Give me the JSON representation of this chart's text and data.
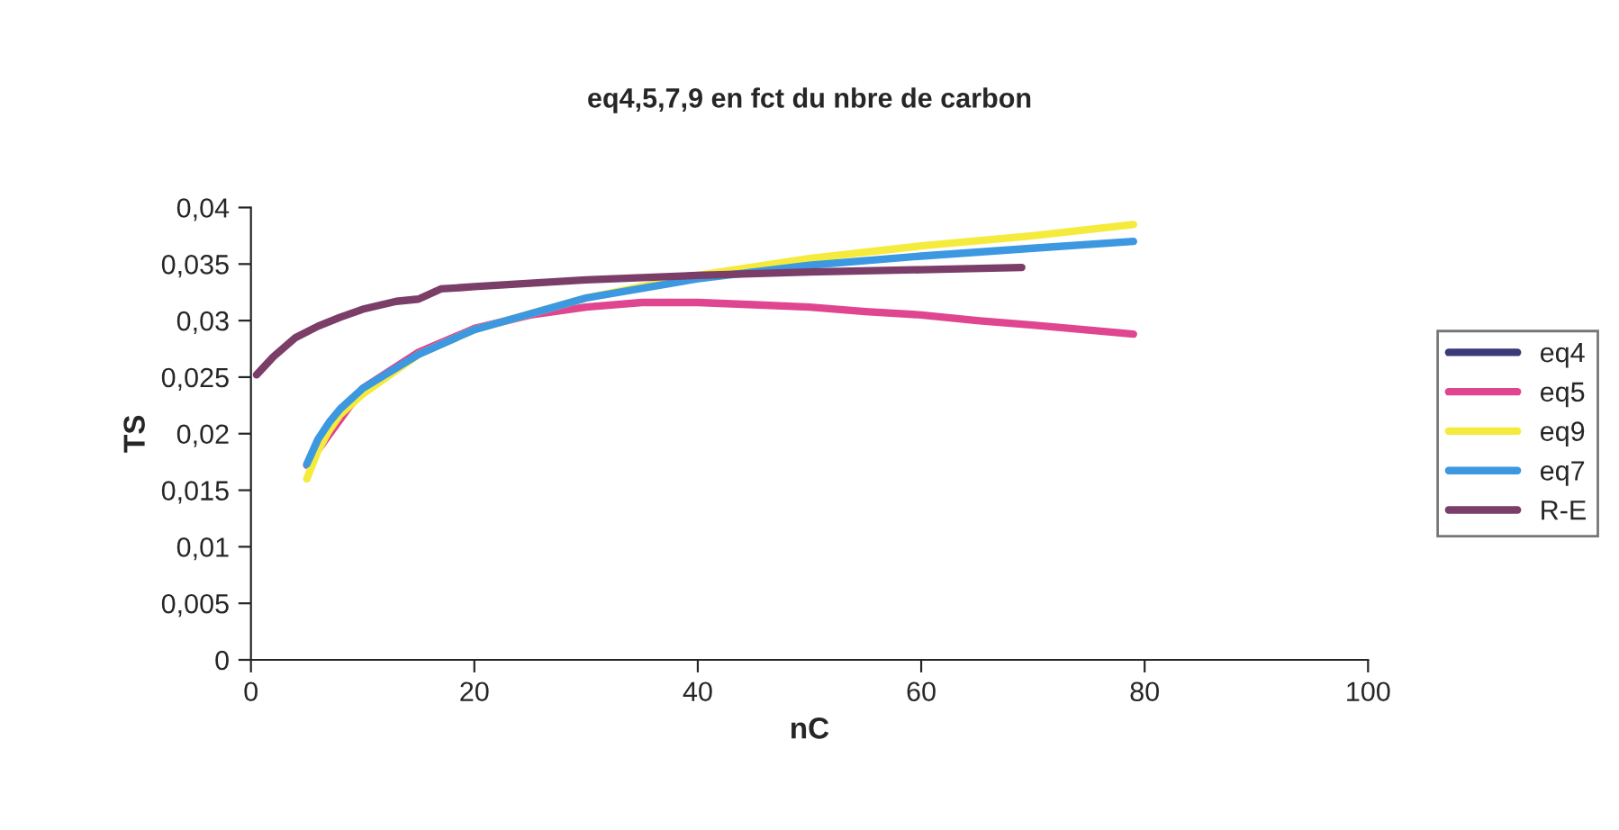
{
  "chart_data": {
    "type": "line",
    "title": "eq4,5,7,9 en fct du nbre de carbon",
    "xlabel": "nC",
    "ylabel": "TS",
    "xlim": [
      0,
      100
    ],
    "xticks": [
      0,
      20,
      40,
      60,
      80,
      100
    ],
    "ylim": [
      0,
      0.04
    ],
    "yticks": [
      {
        "value": 0,
        "label": "0"
      },
      {
        "value": 0.005,
        "label": "0,005"
      },
      {
        "value": 0.01,
        "label": "0,01"
      },
      {
        "value": 0.015,
        "label": "0,015"
      },
      {
        "value": 0.02,
        "label": "0,02"
      },
      {
        "value": 0.025,
        "label": "0,025"
      },
      {
        "value": 0.03,
        "label": "0,03"
      },
      {
        "value": 0.035,
        "label": "0,035"
      },
      {
        "value": 0.04,
        "label": "0,04"
      }
    ],
    "grid": false,
    "legend": "right",
    "marker": "none",
    "line_style": "solid",
    "series": [
      {
        "name": "eq4",
        "color": "#3a3a78"
      },
      {
        "name": "eq5",
        "color": "#e0458f",
        "x": [
          5,
          10,
          15,
          20,
          25,
          30,
          35,
          40,
          45,
          50,
          55,
          60,
          65,
          70,
          79
        ],
        "values": [
          0.0172,
          0.024,
          0.0272,
          0.0293,
          0.0305,
          0.0312,
          0.0316,
          0.0316,
          0.0314,
          0.0312,
          0.0308,
          0.0305,
          0.03,
          0.0296,
          0.0288
        ]
      },
      {
        "name": "eq9",
        "color": "#f5eb3c",
        "x": [
          5,
          6,
          7,
          8,
          10,
          15,
          20,
          30,
          40,
          50,
          60,
          70,
          79
        ],
        "values": [
          0.016,
          0.0185,
          0.0203,
          0.0217,
          0.0235,
          0.027,
          0.0292,
          0.032,
          0.034,
          0.0355,
          0.0366,
          0.0375,
          0.0385
        ]
      },
      {
        "name": "eq7",
        "color": "#3c98e0",
        "x": [
          5,
          6,
          7,
          8,
          10,
          15,
          20,
          30,
          40,
          50,
          60,
          70,
          79
        ],
        "values": [
          0.0173,
          0.0195,
          0.021,
          0.0222,
          0.024,
          0.027,
          0.0292,
          0.032,
          0.0337,
          0.0349,
          0.0357,
          0.0364,
          0.037
        ]
      },
      {
        "name": "R-E",
        "color": "#7a3e68",
        "x": [
          0.5,
          2,
          4,
          6,
          8,
          10,
          13,
          15,
          17,
          20,
          30,
          40,
          50,
          60,
          69
        ],
        "values": [
          0.0252,
          0.0268,
          0.0285,
          0.0295,
          0.0303,
          0.031,
          0.0317,
          0.0319,
          0.0328,
          0.033,
          0.0336,
          0.034,
          0.0343,
          0.0345,
          0.0347
        ]
      }
    ]
  }
}
